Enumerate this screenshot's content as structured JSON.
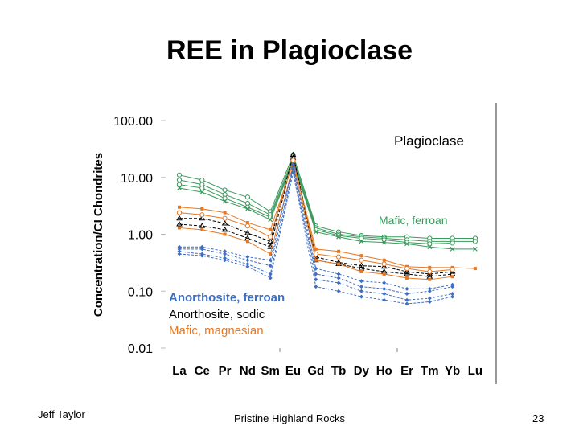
{
  "slide": {
    "title": "REE in Plagioclase",
    "footer_left": "Jeff Taylor",
    "footer_center": "Pristine Highland Rocks",
    "page_number": "23"
  },
  "colors": {
    "green": "#3a9a5c",
    "orange": "#e87722",
    "blue": "#3f6fc4",
    "black": "#000000",
    "axis": "#888888"
  },
  "chart_data": {
    "type": "line",
    "title": "",
    "ylabel": "Concentration/CI Chondrites",
    "xlabel": "",
    "yscale": "log",
    "ylim": [
      0.01,
      100
    ],
    "y_tick_labels": [
      "100.00",
      "10.00",
      "1.00",
      "0.10",
      "0.01"
    ],
    "categories": [
      "La",
      "Ce",
      "Pr",
      "Nd",
      "Sm",
      "Eu",
      "Gd",
      "Tb",
      "Dy",
      "Ho",
      "Er",
      "Tm",
      "Yb",
      "Lu"
    ],
    "annotations": {
      "plagioclase": "Plagioclase",
      "mafic_ferroan": "Mafic, ferroan",
      "anorthosite_ferroan": "Anorthosite, ferroan",
      "anorthosite_sodic": "Anorthosite, sodic",
      "mafic_magnesian": "Mafic, magnesian"
    },
    "series": [
      {
        "name": "Mafic, ferroan 1",
        "group": "green",
        "marker": "o",
        "values": [
          11,
          9,
          6,
          4.5,
          2.5,
          25,
          1.4,
          1.1,
          0.95,
          0.9,
          0.9,
          0.85,
          0.85,
          0.85
        ]
      },
      {
        "name": "Mafic, ferroan 2",
        "group": "green",
        "marker": "o",
        "values": [
          9,
          7.5,
          5,
          3.5,
          2.2,
          22,
          1.3,
          1.0,
          0.9,
          0.85,
          0.8,
          0.75,
          0.75,
          0.75
        ]
      },
      {
        "name": "Mafic, ferroan 3",
        "group": "green",
        "marker": "o",
        "values": [
          7.5,
          6.5,
          4.3,
          3.0,
          2.0,
          20,
          1.2,
          0.95,
          0.85,
          0.8,
          0.72,
          0.68,
          0.7,
          null
        ]
      },
      {
        "name": "Mafic, ferroan 4",
        "group": "green",
        "marker": "x",
        "values": [
          6.5,
          5.5,
          3.8,
          2.8,
          1.8,
          19,
          1.1,
          0.9,
          0.75,
          0.72,
          0.68,
          0.6,
          0.55,
          0.55
        ]
      },
      {
        "name": "Anorthosite, sodic 1",
        "group": "black",
        "marker": "^",
        "values": [
          1.9,
          1.9,
          1.55,
          1.05,
          0.75,
          25,
          0.4,
          0.32,
          0.28,
          0.27,
          0.22,
          0.2,
          0.22,
          null
        ]
      },
      {
        "name": "Anorthosite, sodic 2",
        "group": "black",
        "marker": "^",
        "values": [
          1.5,
          1.4,
          1.2,
          0.85,
          0.6,
          22,
          0.35,
          0.3,
          0.25,
          0.22,
          0.2,
          0.18,
          0.2,
          null
        ]
      },
      {
        "name": "Mafic, magnesian 1",
        "group": "orange",
        "marker": "s",
        "values": [
          3.0,
          2.8,
          2.4,
          1.6,
          1.2,
          18,
          0.55,
          0.5,
          0.42,
          0.35,
          0.27,
          0.26,
          0.26,
          0.25
        ]
      },
      {
        "name": "Mafic, magnesian 2",
        "group": "orange",
        "marker": "s",
        "values": [
          1.3,
          1.2,
          1.0,
          0.75,
          0.45,
          16,
          0.35,
          0.3,
          0.22,
          0.2,
          0.17,
          0.16,
          0.18,
          null
        ]
      },
      {
        "name": "Mafic, magnesian 3",
        "group": "orange",
        "marker": "o",
        "values": [
          2.4,
          2.2,
          1.9,
          1.4,
          0.9,
          20,
          0.45,
          0.4,
          0.35,
          0.3,
          0.25,
          0.22,
          0.24,
          null
        ]
      },
      {
        "name": "Anorthosite, ferroan 1",
        "group": "blue",
        "marker": "d",
        "values": [
          0.55,
          0.55,
          0.45,
          0.35,
          0.28,
          15,
          0.2,
          0.17,
          0.12,
          0.11,
          0.09,
          0.1,
          0.12,
          null
        ]
      },
      {
        "name": "Anorthosite, ferroan 2",
        "group": "blue",
        "marker": "d",
        "values": [
          0.5,
          0.45,
          0.38,
          0.3,
          0.2,
          14,
          0.16,
          0.14,
          0.1,
          0.09,
          0.07,
          0.075,
          0.09,
          null
        ]
      },
      {
        "name": "Anorthosite, ferroan 3",
        "group": "blue",
        "marker": "d",
        "values": [
          0.6,
          0.6,
          0.5,
          0.4,
          0.35,
          17,
          0.25,
          0.2,
          0.15,
          0.14,
          0.11,
          0.11,
          0.13,
          null
        ]
      },
      {
        "name": "Anorthosite, ferroan 4",
        "group": "blue",
        "marker": "d",
        "values": [
          0.45,
          0.42,
          0.35,
          0.27,
          0.17,
          12,
          0.12,
          0.1,
          0.08,
          0.07,
          0.06,
          0.065,
          0.08,
          null
        ]
      }
    ]
  }
}
